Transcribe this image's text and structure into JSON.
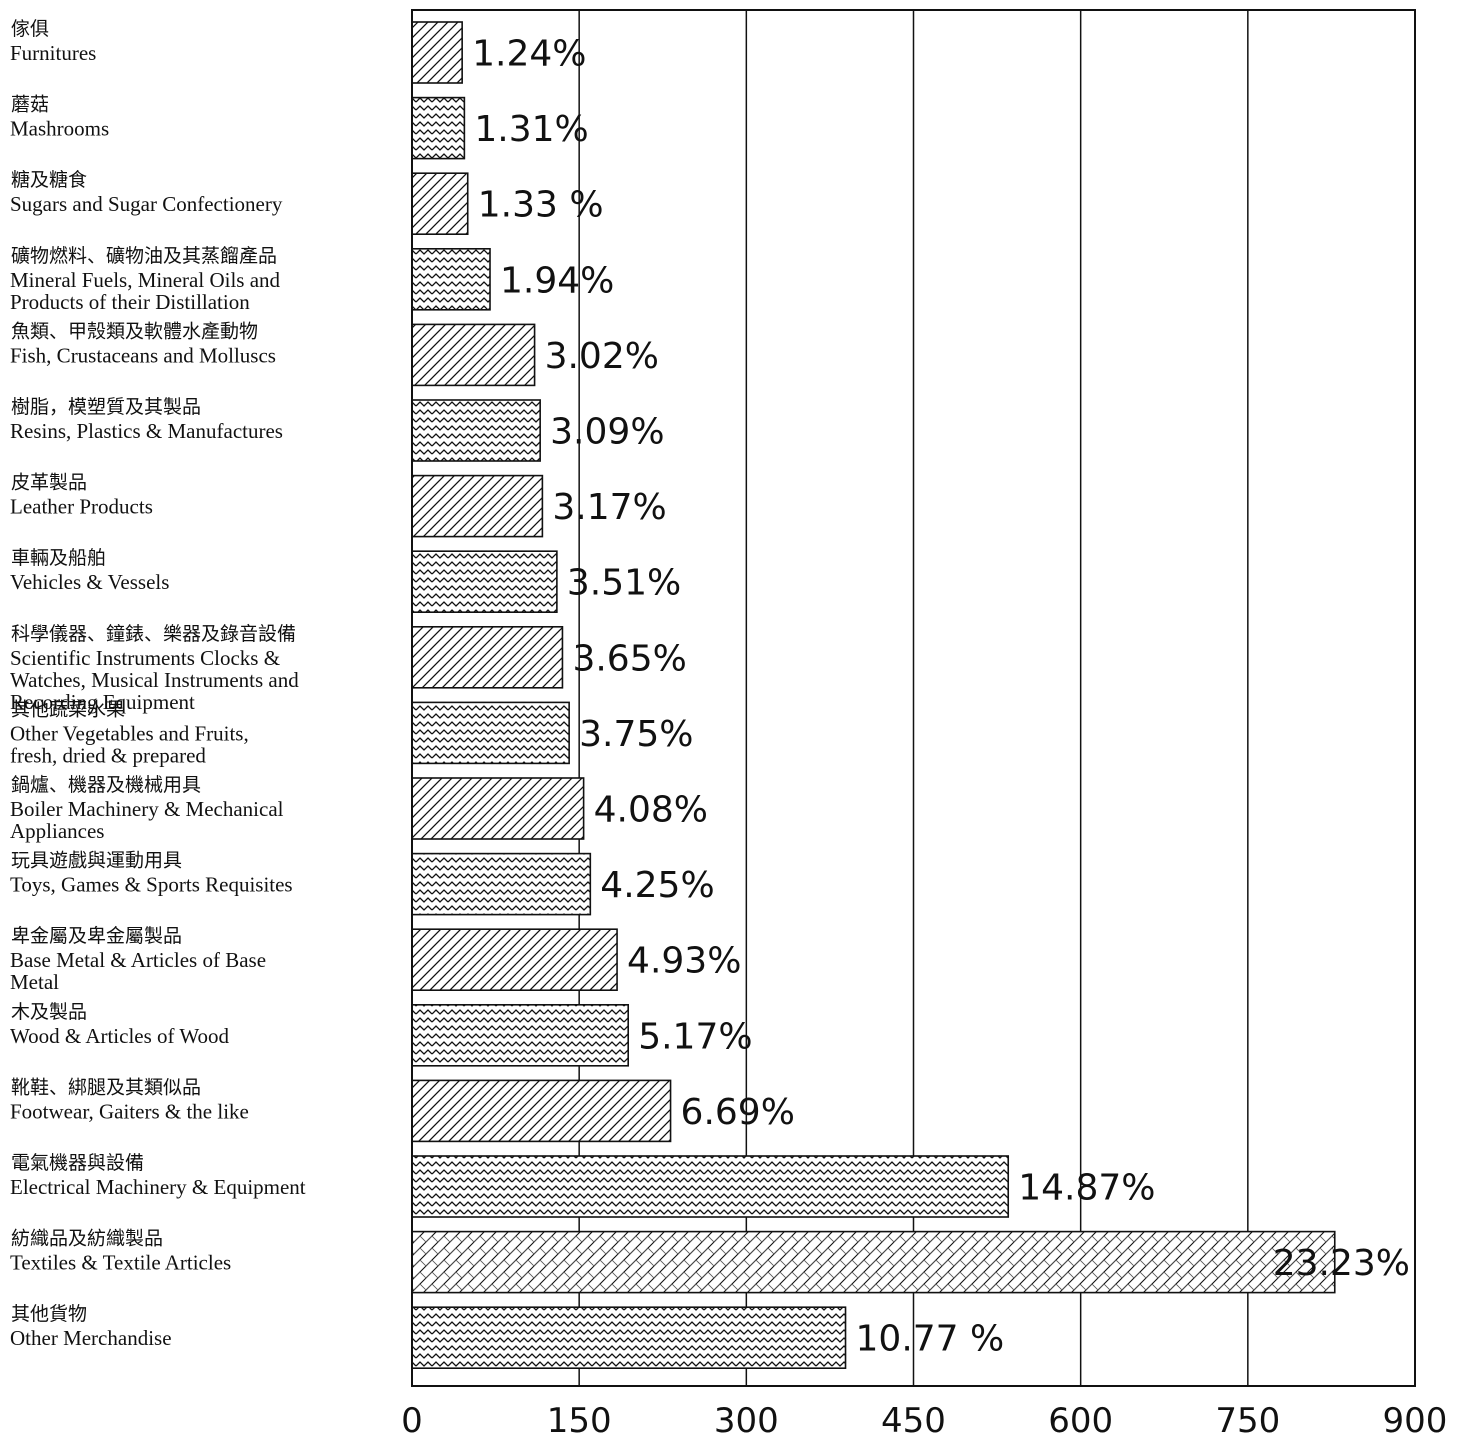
{
  "colors": {
    "ink": "#111111",
    "background": "#ffffff",
    "bar_hatch": "diagonal-and-zigzag hatching"
  },
  "chart_data": {
    "type": "bar",
    "orientation": "horizontal",
    "title": "",
    "xlabel": "",
    "ylabel": "",
    "xlim": [
      0,
      900
    ],
    "x_ticks": [
      0,
      150,
      300,
      450,
      600,
      750,
      900
    ],
    "grid": "vertical lines at each tick",
    "legend": "none",
    "categories": [
      {
        "zh": "傢俱",
        "en": [
          "Furnitures"
        ],
        "value": 45,
        "label": "1.24%"
      },
      {
        "zh": "蘑菇",
        "en": [
          "Mashrooms"
        ],
        "value": 47,
        "label": "1.31%"
      },
      {
        "zh": "糖及糖食",
        "en": [
          "Sugars and Sugar Confectionery"
        ],
        "value": 50,
        "label": "1.33 %"
      },
      {
        "zh": "礦物燃料、礦物油及其蒸餾產品",
        "en": [
          "Mineral Fuels, Mineral Oils and",
          "Products of their Distillation"
        ],
        "value": 70,
        "label": "1.94%"
      },
      {
        "zh": "魚類、甲殼類及軟體水產動物",
        "en": [
          "Fish, Crustaceans and Molluscs"
        ],
        "value": 110,
        "label": "3.02%"
      },
      {
        "zh": "樹脂，模塑質及其製品",
        "en": [
          "Resins, Plastics & Manufactures"
        ],
        "value": 115,
        "label": "3.09%"
      },
      {
        "zh": "皮革製品",
        "en": [
          "Leather  Products"
        ],
        "value": 117,
        "label": "3.17%"
      },
      {
        "zh": "車輛及船舶",
        "en": [
          "Vehicles & Vessels"
        ],
        "value": 130,
        "label": "3.51%"
      },
      {
        "zh": "科學儀器、鐘錶、樂器及錄音設備",
        "en": [
          "Scientific Instruments Clocks &",
          "Watches, Musical Instruments and",
          "Recording Equipment"
        ],
        "value": 135,
        "label": "3.65%"
      },
      {
        "zh": "其他蔬菜水果",
        "en": [
          "Other Vegetables and Fruits,",
          "fresh, dried & prepared"
        ],
        "value": 141,
        "label": "3.75%"
      },
      {
        "zh": "鍋爐、機器及機械用具",
        "en": [
          "Boiler Machinery & Mechanical",
          "Appliances"
        ],
        "value": 154,
        "label": "4.08%"
      },
      {
        "zh": "玩具遊戲與運動用具",
        "en": [
          "Toys, Games & Sports Requisites"
        ],
        "value": 160,
        "label": "4.25%"
      },
      {
        "zh": "卑金屬及卑金屬製品",
        "en": [
          "Base Metal & Articles of Base",
          "Metal"
        ],
        "value": 184,
        "label": "4.93%"
      },
      {
        "zh": "木及製品",
        "en": [
          "Wood & Articles of Wood"
        ],
        "value": 194,
        "label": "5.17%"
      },
      {
        "zh": "靴鞋、綁腿及其類似品",
        "en": [
          "Footwear, Gaiters & the like"
        ],
        "value": 232,
        "label": "6.69%"
      },
      {
        "zh": "電氣機器與設備",
        "en": [
          "Electrical Machinery & Equipment"
        ],
        "value": 535,
        "label": "14.87%"
      },
      {
        "zh": "紡織品及紡織製品",
        "en": [
          "Textiles & Textile Articles"
        ],
        "value": 828,
        "label": "23.23%"
      },
      {
        "zh": "其他貨物",
        "en": [
          "Other Merchandise"
        ],
        "value": 389,
        "label": "10.77 %"
      }
    ]
  }
}
